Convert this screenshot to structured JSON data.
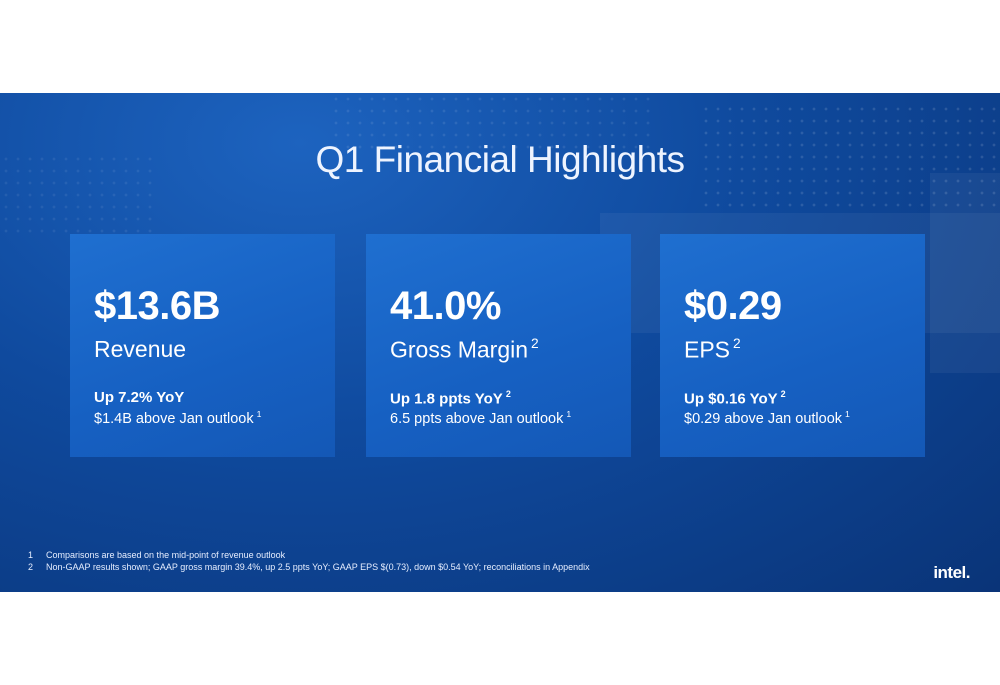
{
  "title": "Q1 Financial Highlights",
  "cards": [
    {
      "value": "$13.6B",
      "label": "Revenue",
      "change": "Up 7.2% YoY",
      "outlook": "$1.4B above Jan outlook",
      "outlook_note": "1"
    },
    {
      "value": "41.0%",
      "label": "Gross Margin",
      "label_note": "2",
      "change": "Up 1.8 ppts YoY",
      "change_note": "2",
      "outlook": "6.5 ppts above Jan outlook",
      "outlook_note": "1"
    },
    {
      "value": "$0.29",
      "label": "EPS",
      "label_note": "2",
      "change": "Up $0.16 YoY",
      "change_note": "2",
      "outlook": "$0.29 above Jan outlook",
      "outlook_note": "1"
    }
  ],
  "footnotes": [
    {
      "marker": "1",
      "text": "Comparisons are based on the mid-point of revenue outlook"
    },
    {
      "marker": "2",
      "text": "Non-GAAP results shown; GAAP gross margin 39.4%, up 2.5 ppts YoY; GAAP EPS $(0.73), down $0.54 YoY; reconciliations in Appendix"
    }
  ],
  "logo": "intel."
}
